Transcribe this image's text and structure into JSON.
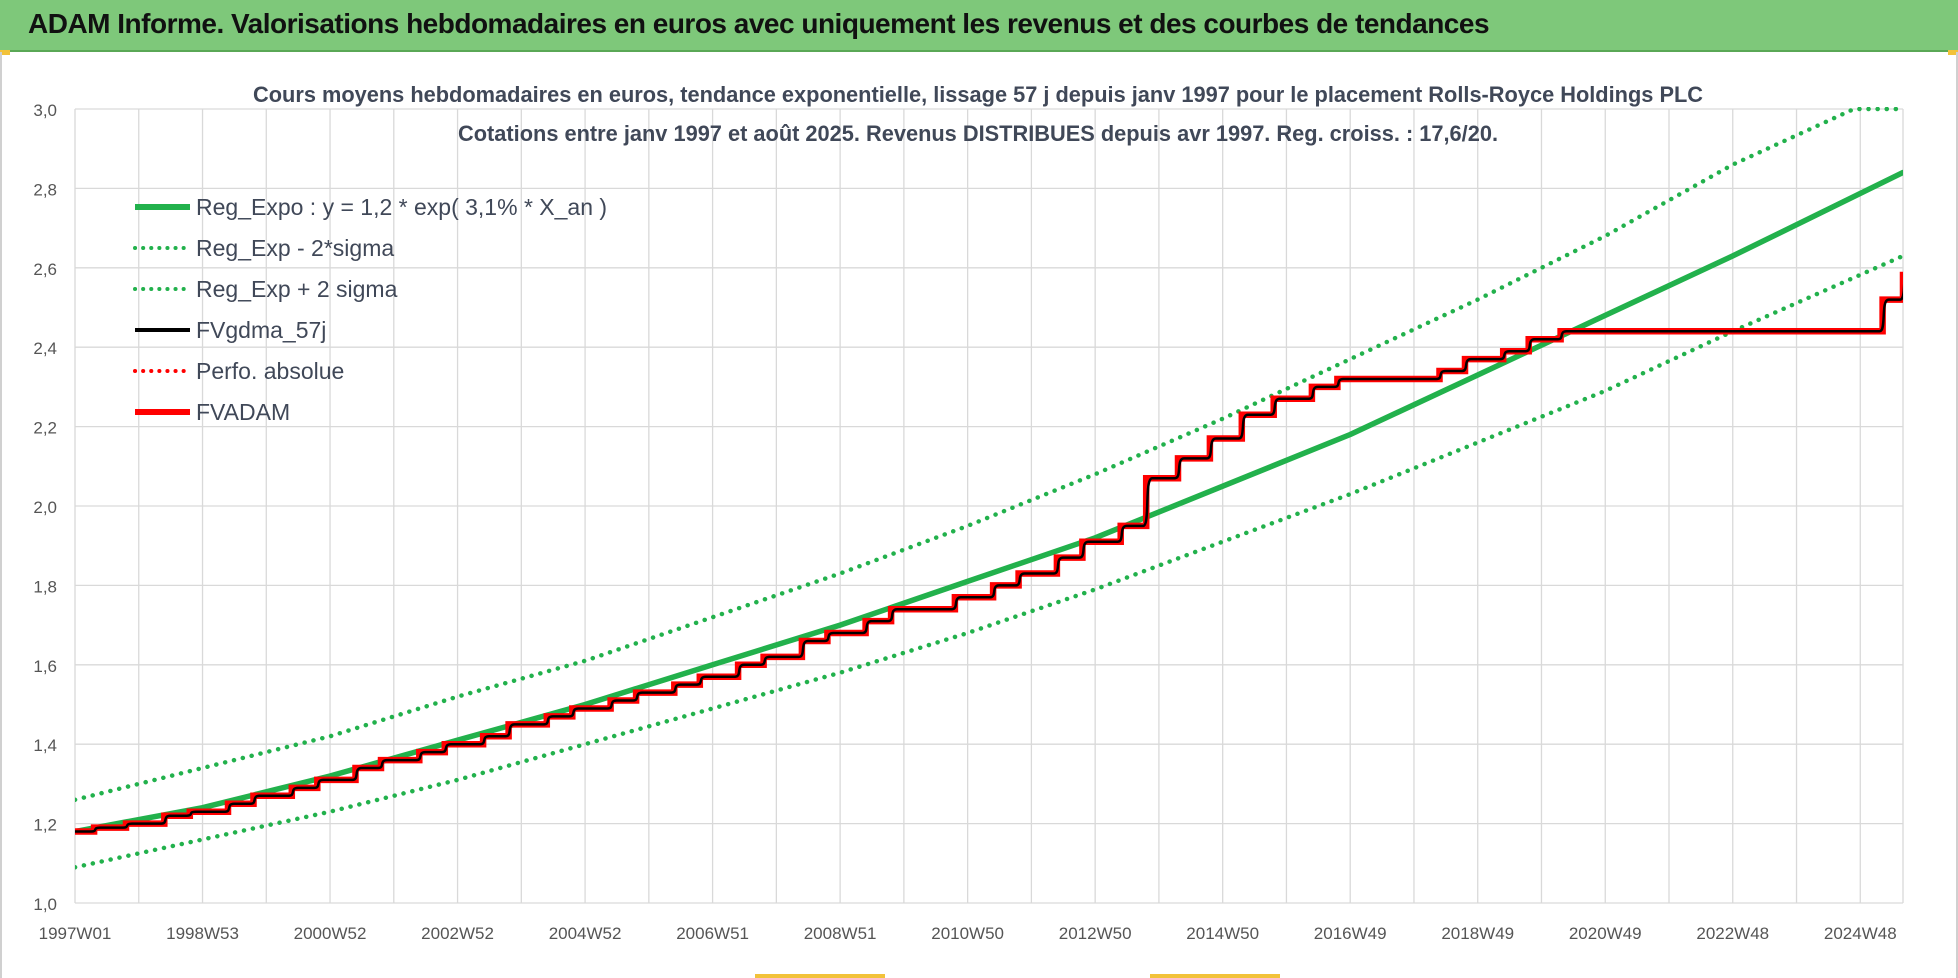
{
  "header": {
    "title": "ADAM Informe. Valorisations hebdomadaires en euros avec uniquement les revenus et des courbes de tendances"
  },
  "colors": {
    "header_bg": "#7ec87a",
    "trend": "#22b14c",
    "fv": "#000000",
    "fvadam": "#ff0000",
    "grid": "#d9d9d9"
  },
  "chart_data": {
    "type": "line",
    "title_line1": "Cours moyens hebdomadaires en euros, tendance exponentielle, lissage 57 j depuis janv 1997 pour le placement Rolls-Royce Holdings PLC",
    "title_line2": "Cotations entre janv 1997 et août 2025.  Revenus DISTRIBUES depuis avr 1997. Reg. croiss. : 17,6/20.",
    "xlabel": "",
    "ylabel": "",
    "ylim": [
      1.0,
      3.0
    ],
    "yticks": [
      "1,0",
      "1,2",
      "1,4",
      "1,6",
      "1,8",
      "2,0",
      "2,2",
      "2,4",
      "2,6",
      "2,8",
      "3,0"
    ],
    "xlim": [
      1997.0,
      2025.67
    ],
    "xticks": [
      {
        "label": "1997W01",
        "x": 1997.0
      },
      {
        "label": "1998W53",
        "x": 1999.0
      },
      {
        "label": "2000W52",
        "x": 2001.0
      },
      {
        "label": "2002W52",
        "x": 2003.0
      },
      {
        "label": "2004W52",
        "x": 2005.0
      },
      {
        "label": "2006W51",
        "x": 2007.0
      },
      {
        "label": "2008W51",
        "x": 2009.0
      },
      {
        "label": "2010W50",
        "x": 2011.0
      },
      {
        "label": "2012W50",
        "x": 2013.0
      },
      {
        "label": "2014W50",
        "x": 2015.0
      },
      {
        "label": "2016W49",
        "x": 2017.0
      },
      {
        "label": "2018W49",
        "x": 2019.0
      },
      {
        "label": "2020W49",
        "x": 2021.0
      },
      {
        "label": "2022W48",
        "x": 2023.0
      },
      {
        "label": "2024W48",
        "x": 2025.0
      }
    ],
    "grid": true,
    "legend_position": "top-left",
    "legend": [
      {
        "label": "Reg_Expo : y = 1,2 * exp( 3,1% *  X_an )",
        "style": "solid-thick",
        "color": "#22b14c"
      },
      {
        "label": "Reg_Exp - 2*sigma",
        "style": "dotted",
        "color": "#22b14c"
      },
      {
        "label": "Reg_Exp + 2 sigma",
        "style": "dotted",
        "color": "#22b14c"
      },
      {
        "label": "FVgdma_57j",
        "style": "solid",
        "color": "#000000"
      },
      {
        "label": "Perfo. absolue",
        "style": "dotted",
        "color": "#ff0000"
      },
      {
        "label": "FVADAM",
        "style": "solid-thick",
        "color": "#ff0000"
      }
    ],
    "series": [
      {
        "name": "Reg_Expo : y = 1,2 * exp( 3,1% *  X_an )",
        "x": [
          1997,
          1999,
          2001,
          2003,
          2005,
          2007,
          2009,
          2011,
          2013,
          2015,
          2017,
          2019,
          2021,
          2023,
          2025.67
        ],
        "values": [
          1.18,
          1.24,
          1.32,
          1.41,
          1.5,
          1.6,
          1.7,
          1.81,
          1.92,
          2.05,
          2.18,
          2.33,
          2.48,
          2.63,
          2.84
        ]
      },
      {
        "name": "Reg_Exp + 2 sigma",
        "x": [
          1997,
          1999,
          2001,
          2003,
          2005,
          2007,
          2009,
          2011,
          2013,
          2015,
          2017,
          2019,
          2021,
          2023,
          2024.9,
          2025.67
        ],
        "values": [
          1.26,
          1.34,
          1.42,
          1.52,
          1.61,
          1.72,
          1.83,
          1.95,
          2.08,
          2.22,
          2.37,
          2.52,
          2.68,
          2.86,
          3.0,
          3.0
        ]
      },
      {
        "name": "Reg_Exp - 2*sigma",
        "x": [
          1997,
          1999,
          2001,
          2003,
          2005,
          2007,
          2009,
          2011,
          2013,
          2015,
          2017,
          2019,
          2021,
          2023,
          2025.67
        ],
        "values": [
          1.09,
          1.16,
          1.23,
          1.31,
          1.4,
          1.49,
          1.58,
          1.68,
          1.79,
          1.91,
          2.03,
          2.16,
          2.29,
          2.44,
          2.63
        ]
      },
      {
        "name": "FVADAM",
        "x": [
          1997.0,
          1997.3,
          1997.8,
          1998.4,
          1998.8,
          1999.4,
          1999.8,
          2000.4,
          2000.8,
          2001.4,
          2001.8,
          2002.4,
          2002.8,
          2003.4,
          2003.8,
          2004.4,
          2004.8,
          2005.4,
          2005.8,
          2006.4,
          2006.8,
          2007.4,
          2007.8,
          2008.4,
          2008.8,
          2009.4,
          2009.8,
          2010.5,
          2010.8,
          2011.4,
          2011.8,
          2012.4,
          2012.8,
          2013.4,
          2013.8,
          2014.3,
          2014.8,
          2015.3,
          2015.8,
          2016.4,
          2016.8,
          2018.0,
          2018.4,
          2018.8,
          2019.4,
          2019.8,
          2020.3,
          2025.35,
          2025.67
        ],
        "values": [
          1.18,
          1.19,
          1.2,
          1.22,
          1.23,
          1.25,
          1.27,
          1.29,
          1.31,
          1.34,
          1.36,
          1.38,
          1.4,
          1.42,
          1.45,
          1.47,
          1.49,
          1.51,
          1.53,
          1.55,
          1.57,
          1.6,
          1.62,
          1.66,
          1.68,
          1.71,
          1.74,
          1.74,
          1.77,
          1.8,
          1.83,
          1.87,
          1.91,
          1.95,
          2.07,
          2.12,
          2.17,
          2.23,
          2.27,
          2.3,
          2.32,
          2.32,
          2.34,
          2.37,
          2.39,
          2.42,
          2.44,
          2.52,
          2.59
        ]
      },
      {
        "name": "FVgdma_57j",
        "x": [
          1997.0,
          1997.3,
          1997.8,
          1998.4,
          1998.8,
          1999.4,
          1999.8,
          2000.4,
          2000.8,
          2001.4,
          2001.8,
          2002.4,
          2002.8,
          2003.4,
          2003.8,
          2004.4,
          2004.8,
          2005.4,
          2005.8,
          2006.4,
          2006.8,
          2007.4,
          2007.8,
          2008.4,
          2008.8,
          2009.4,
          2009.8,
          2010.5,
          2010.8,
          2011.4,
          2011.8,
          2012.4,
          2012.8,
          2013.4,
          2013.8,
          2014.3,
          2014.8,
          2015.3,
          2015.8,
          2016.4,
          2016.8,
          2018.0,
          2018.4,
          2018.8,
          2019.4,
          2019.8,
          2020.3,
          2025.35,
          2025.67
        ],
        "values": [
          1.18,
          1.19,
          1.2,
          1.22,
          1.23,
          1.25,
          1.27,
          1.29,
          1.31,
          1.34,
          1.36,
          1.38,
          1.4,
          1.42,
          1.45,
          1.47,
          1.49,
          1.51,
          1.53,
          1.55,
          1.57,
          1.6,
          1.62,
          1.66,
          1.68,
          1.71,
          1.74,
          1.74,
          1.77,
          1.8,
          1.83,
          1.87,
          1.91,
          1.95,
          2.07,
          2.12,
          2.17,
          2.23,
          2.27,
          2.3,
          2.32,
          2.32,
          2.34,
          2.37,
          2.39,
          2.42,
          2.44,
          2.52,
          2.59
        ]
      }
    ]
  }
}
